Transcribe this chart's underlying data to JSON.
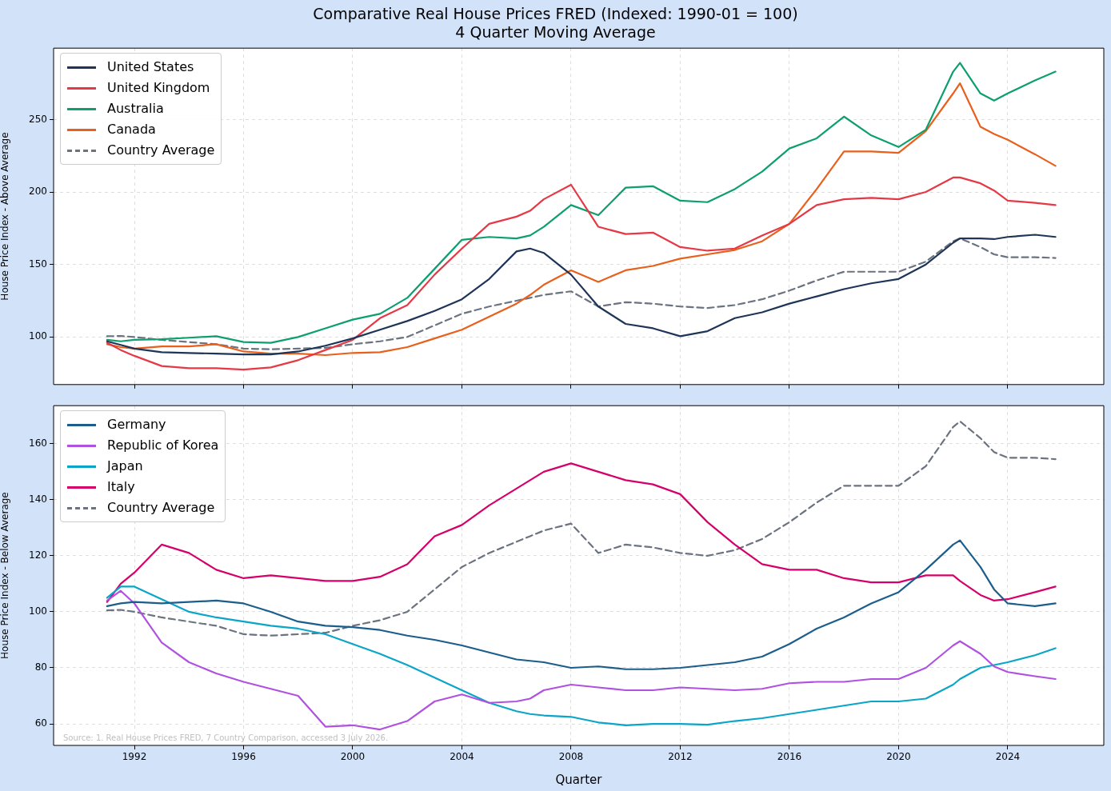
{
  "chart_data": [
    {
      "type": "line",
      "title": "Comparative Real House Prices FRED (Indexed: 1990-01 = 100)",
      "subtitle": "4 Quarter Moving Average",
      "ylabel": "House Price Index - Above Average",
      "x": [
        1991,
        1991.5,
        1992,
        1993,
        1994,
        1995,
        1996,
        1997,
        1998,
        1999,
        2000,
        2001,
        2002,
        2003,
        2004,
        2005,
        2006,
        2006.5,
        2007,
        2008,
        2009,
        2010,
        2011,
        2012,
        2013,
        2014,
        2015,
        2016,
        2017,
        2018,
        2019,
        2020,
        2021,
        2022,
        2022.25,
        2023,
        2023.5,
        2024,
        2025,
        2025.75
      ],
      "xlim": [
        1989.04,
        2027.52
      ],
      "xticks": [
        1992,
        1996,
        2000,
        2004,
        2008,
        2012,
        2016,
        2020,
        2024
      ],
      "ylim": [
        67.2,
        299.2
      ],
      "yticks": [
        100,
        150,
        200,
        250
      ],
      "grid": true,
      "legend": "top left",
      "tick_labels": "y",
      "series": [
        {
          "name": "United States",
          "color": "#1f3558",
          "values": [
            97,
            94.5,
            92,
            89.5,
            89,
            88.5,
            88,
            88,
            90,
            94,
            99,
            105,
            111,
            118,
            126,
            140,
            159,
            161,
            158,
            143,
            121,
            109,
            106,
            100.5,
            104,
            113,
            117,
            123,
            128,
            133,
            137,
            140,
            150,
            165,
            168,
            168,
            167.5,
            169,
            170.5,
            169
          ]
        },
        {
          "name": "United Kingdom",
          "color": "#e63946",
          "values": [
            96,
            91,
            87,
            80,
            78.5,
            78.5,
            77.5,
            79,
            84,
            91,
            98,
            113,
            122,
            143,
            161,
            178,
            183,
            187,
            195,
            205,
            176,
            171,
            172,
            162,
            159.5,
            161,
            170,
            178,
            191,
            195,
            196,
            195,
            200,
            210,
            210,
            206,
            201,
            194,
            192.5,
            191
          ]
        },
        {
          "name": "Australia",
          "color": "#0e9f6e",
          "values": [
            98,
            97,
            98,
            98.5,
            99.5,
            100.5,
            96.5,
            96,
            100,
            106,
            112,
            116,
            127,
            147,
            167,
            169,
            168,
            170,
            176,
            191,
            184,
            203,
            204,
            194,
            193,
            202,
            214,
            230,
            237,
            252,
            239,
            231,
            243,
            283,
            289,
            268,
            263,
            268,
            277,
            283
          ]
        },
        {
          "name": "Canada",
          "color": "#e8601c",
          "values": [
            95,
            93,
            92,
            93.5,
            93.5,
            95,
            90,
            88.5,
            88.5,
            87.5,
            89,
            89.5,
            93,
            99,
            105,
            114,
            123,
            129,
            136,
            146,
            138,
            146,
            149,
            154,
            157,
            160,
            166,
            178,
            202,
            228,
            228,
            227,
            242,
            268,
            275,
            245,
            240,
            236,
            226,
            218
          ]
        },
        {
          "name": "Country Average",
          "color": "#6b7280",
          "line_style": "dashed",
          "values": [
            100.5,
            100.7,
            100,
            98,
            96.5,
            95,
            92,
            91.5,
            92,
            92.5,
            95,
            97,
            100,
            108,
            116,
            121,
            125,
            127,
            129,
            131.5,
            121,
            124,
            123,
            121,
            120,
            122,
            126,
            132,
            139,
            145,
            145,
            145,
            152,
            166,
            168,
            162,
            157,
            155,
            155,
            154.5
          ]
        }
      ]
    },
    {
      "type": "line",
      "xlabel": "Quarter",
      "ylabel": "House Price Index - Below Average",
      "x": [
        1991,
        1991.5,
        1992,
        1993,
        1994,
        1995,
        1996,
        1997,
        1998,
        1999,
        2000,
        2001,
        2002,
        2003,
        2004,
        2005,
        2006,
        2006.5,
        2007,
        2008,
        2009,
        2010,
        2011,
        2012,
        2013,
        2014,
        2015,
        2016,
        2017,
        2018,
        2019,
        2020,
        2021,
        2022,
        2022.25,
        2023,
        2023.5,
        2024,
        2025,
        2025.75
      ],
      "xlim": [
        1989.04,
        2027.52
      ],
      "xticks": [
        1992,
        1996,
        2000,
        2004,
        2008,
        2012,
        2016,
        2020,
        2024
      ],
      "ylim": [
        52.3,
        173.6
      ],
      "yticks": [
        60,
        80,
        100,
        120,
        140,
        160
      ],
      "grid": true,
      "legend": "top left",
      "annotations": [
        "Source: 1. Real House Prices FRED, 7 Country Comparison, accessed 3 July 2026."
      ],
      "series": [
        {
          "name": "Germany",
          "color": "#1b5e8c",
          "values": [
            102,
            103,
            103.5,
            103,
            103.5,
            104,
            103,
            100,
            96.5,
            95,
            94.5,
            93.5,
            91.5,
            90,
            88,
            85.5,
            83,
            82.5,
            82,
            80,
            80.5,
            79.5,
            79.5,
            80,
            81,
            82,
            84,
            88.5,
            94,
            98,
            103,
            107,
            115,
            124,
            125.5,
            116,
            108,
            103,
            102,
            103
          ]
        },
        {
          "name": "Republic of Korea",
          "color": "#b052e0",
          "values": [
            104,
            107.5,
            103,
            89,
            82,
            78,
            75,
            72.5,
            70,
            59,
            59.5,
            58,
            61,
            68,
            70.5,
            67.5,
            68,
            69,
            72,
            74,
            73,
            72,
            72,
            73,
            72.5,
            72,
            72.5,
            74.5,
            75,
            75,
            76,
            76,
            80,
            88,
            89.5,
            85,
            80.5,
            78.5,
            77,
            76
          ]
        },
        {
          "name": "Japan",
          "color": "#0aa5c8",
          "values": [
            105,
            109,
            109,
            104.5,
            100,
            98,
            96.5,
            95,
            94,
            92,
            88.5,
            85,
            81,
            76.5,
            72,
            67.5,
            64.5,
            63.5,
            63,
            62.5,
            60.5,
            59.5,
            60,
            60,
            59.7,
            61,
            62,
            63.5,
            65,
            66.5,
            68,
            68,
            69,
            74,
            76,
            80,
            81,
            82,
            84.5,
            87
          ]
        },
        {
          "name": "Italy",
          "color": "#d6006b",
          "values": [
            103.5,
            110,
            114,
            124,
            121,
            115,
            112,
            113,
            112,
            111,
            111,
            112.5,
            117,
            127,
            131,
            138,
            144,
            147,
            150,
            153,
            150,
            147,
            145.5,
            142,
            132,
            124,
            117,
            115,
            115,
            112,
            110.5,
            110.5,
            113,
            113,
            111,
            106,
            104,
            104.5,
            107,
            109
          ]
        },
        {
          "name": "Country Average",
          "color": "#6b7280",
          "line_style": "dashed",
          "values": [
            100.5,
            100.7,
            100,
            98,
            96.5,
            95,
            92,
            91.5,
            92,
            92.5,
            95,
            97,
            100,
            108,
            116,
            121,
            125,
            127,
            129,
            131.5,
            121,
            124,
            123,
            121,
            120,
            122,
            126,
            132,
            139,
            145,
            145,
            145,
            152,
            166,
            168,
            162,
            157,
            155,
            155,
            154.5
          ]
        }
      ]
    }
  ]
}
